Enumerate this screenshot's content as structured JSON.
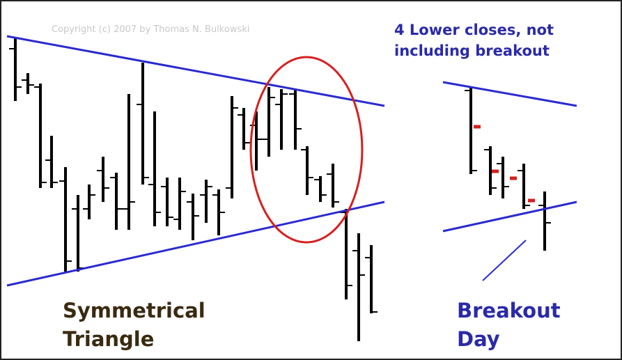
{
  "copyright": "Copyright (c) 2007 by Thomas N. Bulkowski",
  "annotation": {
    "lines": [
      "4 Lower closes, not",
      "including breakout"
    ]
  },
  "pattern_label": {
    "lines": [
      "Symmetrical",
      "Triangle"
    ]
  },
  "breakout_label": {
    "lines": [
      "Breakout",
      "Day"
    ]
  }
}
